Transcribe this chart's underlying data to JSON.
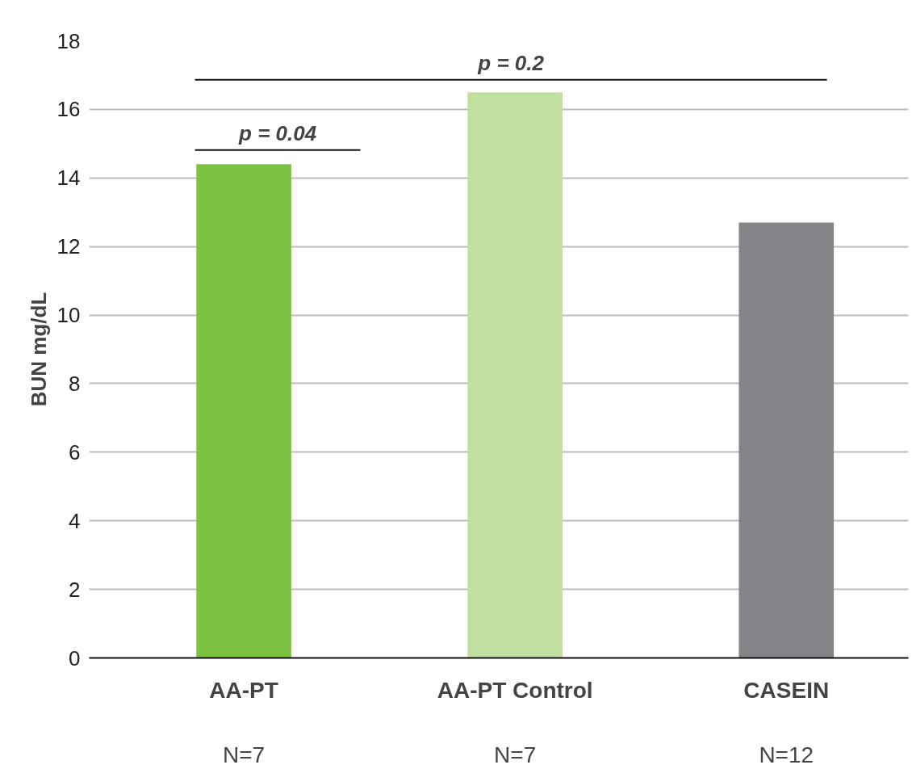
{
  "chart_data": {
    "type": "bar",
    "ylabel": "BUN mg/dL",
    "categories": [
      "AA-PT",
      "AA-PT Control",
      "CASEIN"
    ],
    "values": [
      14.4,
      16.5,
      12.7
    ],
    "colors": [
      "#7dc242",
      "#c1dfa0",
      "#848589"
    ],
    "ylim": [
      0,
      18
    ],
    "yticks": [
      0,
      2,
      4,
      6,
      8,
      10,
      12,
      14,
      16,
      18
    ],
    "grid": "y",
    "annotations": [
      "p = 0.04",
      "p = 0.2",
      "N=7",
      "N=7",
      "N=12"
    ]
  }
}
